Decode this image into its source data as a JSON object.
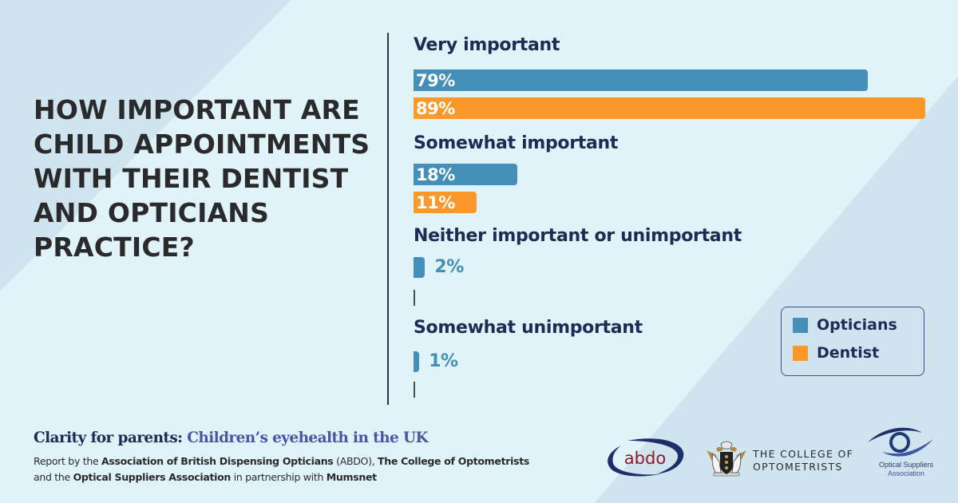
{
  "headline": {
    "lines": [
      "HOW IMPORTANT ARE",
      "CHILD APPOINTMENTS",
      "WITH THEIR DENTIST",
      "AND OPTICIANS",
      "PRACTICE?"
    ]
  },
  "chart_data": {
    "type": "bar",
    "orientation": "horizontal",
    "title": "How important are child appointments with their dentist and opticians practice?",
    "categories": [
      "Very important",
      "Somewhat important",
      "Neither important or unimportant",
      "Somewhat unimportant"
    ],
    "series": [
      {
        "name": "Opticians",
        "color": "#448fb7",
        "values": [
          79,
          18,
          2,
          1
        ]
      },
      {
        "name": "Dentist",
        "color": "#fa992a",
        "values": [
          89,
          11,
          0,
          0
        ]
      }
    ],
    "value_labels": {
      "Opticians": [
        "79%",
        "18%",
        "2%",
        "1%"
      ],
      "Dentist": [
        "89%",
        "11%",
        "",
        ""
      ]
    },
    "unit": "%",
    "xlim": [
      0,
      89
    ],
    "grid": false,
    "legend": {
      "position": "bottom-right",
      "entries": [
        "Opticians",
        "Dentist"
      ]
    }
  },
  "footer": {
    "title_part1": "Clarity for parents:",
    "title_part2": "Children’s eyehealth in the UK",
    "sub": {
      "t1": "Report by the ",
      "b1": "Association of British Dispensing Opticians",
      "t2": " (ABDO), ",
      "b2": "The College of Optometrists",
      "t3": "and the ",
      "b3": "Optical Suppliers Association",
      "t4": " in partnership with ",
      "b4": "Mumsnet"
    }
  },
  "logos": {
    "abdo": "abdo",
    "college_line1": "THE COLLEGE OF",
    "college_line2": "OPTOMETRISTS",
    "osa_line1": "Optical Suppliers",
    "osa_line2": "Association"
  }
}
